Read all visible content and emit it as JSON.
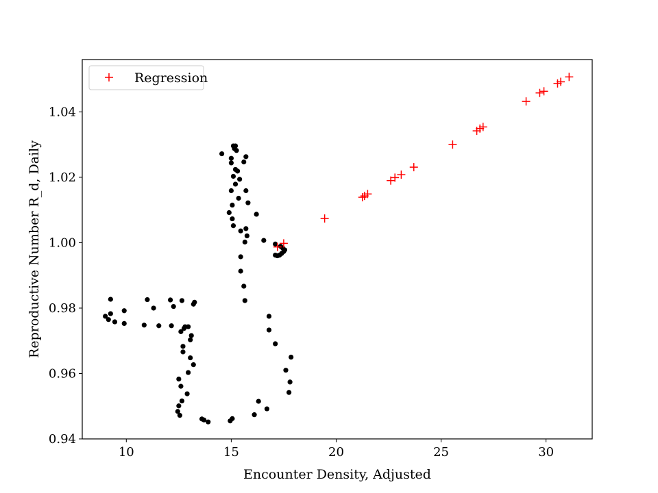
{
  "chart_data": {
    "type": "scatter",
    "title": "",
    "xlabel": "Encounter Density, Adjusted",
    "ylabel": "Reproductive Number R_d, Daily",
    "xlim": [
      7.9,
      32.2
    ],
    "ylim": [
      0.94,
      1.056
    ],
    "x_ticks": [
      10,
      15,
      20,
      25,
      30
    ],
    "x_tick_labels": [
      "10",
      "15",
      "20",
      "25",
      "30"
    ],
    "y_ticks": [
      0.94,
      0.96,
      0.98,
      1.0,
      1.02,
      1.04
    ],
    "y_tick_labels": [
      "0.94",
      "0.96",
      "0.98",
      "1.00",
      "1.02",
      "1.04"
    ],
    "grid": false,
    "legend": {
      "position": "top-left"
    },
    "series": [
      {
        "marker": "dot",
        "color": "#000000",
        "points": [
          [
            9.0,
            0.9775
          ],
          [
            9.15,
            0.9765
          ],
          [
            9.25,
            0.9827
          ],
          [
            9.25,
            0.9783
          ],
          [
            9.45,
            0.9758
          ],
          [
            9.9,
            0.9753
          ],
          [
            9.9,
            0.9792
          ],
          [
            10.85,
            0.9748
          ],
          [
            11.0,
            0.9826
          ],
          [
            11.3,
            0.98
          ],
          [
            11.55,
            0.9746
          ],
          [
            12.1,
            0.9825
          ],
          [
            12.15,
            0.9746
          ],
          [
            12.25,
            0.9805
          ],
          [
            12.65,
            0.9823
          ],
          [
            12.6,
            0.9728
          ],
          [
            12.75,
            0.9738
          ],
          [
            12.8,
            0.9743
          ],
          [
            12.95,
            0.9743
          ],
          [
            13.05,
            0.9703
          ],
          [
            13.1,
            0.9716
          ],
          [
            13.2,
            0.9812
          ],
          [
            13.25,
            0.9818
          ],
          [
            12.7,
            0.9683
          ],
          [
            12.7,
            0.9666
          ],
          [
            13.05,
            0.9648
          ],
          [
            13.2,
            0.9627
          ],
          [
            12.95,
            0.9603
          ],
          [
            12.5,
            0.9583
          ],
          [
            12.6,
            0.9561
          ],
          [
            12.9,
            0.9538
          ],
          [
            12.65,
            0.9516
          ],
          [
            12.5,
            0.9501
          ],
          [
            12.45,
            0.9484
          ],
          [
            12.55,
            0.9472
          ],
          [
            13.6,
            0.9461
          ],
          [
            13.7,
            0.9458
          ],
          [
            13.9,
            0.9452
          ],
          [
            14.95,
            0.9455
          ],
          [
            15.05,
            0.9462
          ],
          [
            16.1,
            0.9474
          ],
          [
            16.3,
            0.9515
          ],
          [
            16.7,
            0.9492
          ],
          [
            17.75,
            0.9542
          ],
          [
            17.8,
            0.9574
          ],
          [
            17.6,
            0.961
          ],
          [
            17.85,
            0.965
          ],
          [
            17.1,
            0.9691
          ],
          [
            16.8,
            0.9733
          ],
          [
            16.8,
            0.9775
          ],
          [
            15.65,
            0.9823
          ],
          [
            15.6,
            0.9867
          ],
          [
            15.45,
            0.9913
          ],
          [
            15.45,
            0.9957
          ],
          [
            15.65,
            1.0002
          ],
          [
            15.75,
            1.0021
          ],
          [
            15.7,
            1.0043
          ],
          [
            15.45,
            1.0036
          ],
          [
            15.1,
            1.0052
          ],
          [
            15.05,
            1.0073
          ],
          [
            14.9,
            1.0092
          ],
          [
            15.05,
            1.0115
          ],
          [
            15.35,
            1.0136
          ],
          [
            15.8,
            1.0122
          ],
          [
            16.2,
            1.0087
          ],
          [
            16.55,
            1.0007
          ],
          [
            15.0,
            1.0159
          ],
          [
            15.2,
            1.0179
          ],
          [
            15.1,
            1.0203
          ],
          [
            15.2,
            1.0224
          ],
          [
            15.3,
            1.0219
          ],
          [
            15.4,
            1.0194
          ],
          [
            15.7,
            1.0159
          ],
          [
            15.6,
            1.0247
          ],
          [
            15.7,
            1.0263
          ],
          [
            15.0,
            1.0244
          ],
          [
            15.0,
            1.0258
          ],
          [
            14.55,
            1.0272
          ],
          [
            15.1,
            1.0296
          ],
          [
            15.2,
            1.0296
          ],
          [
            15.15,
            1.0288
          ],
          [
            15.25,
            1.0282
          ],
          [
            17.1,
            0.9996
          ],
          [
            17.2,
            0.996
          ],
          [
            17.1,
            0.9962
          ],
          [
            17.3,
            0.9962
          ],
          [
            17.4,
            0.9967
          ],
          [
            17.5,
            0.9973
          ],
          [
            17.55,
            0.9978
          ],
          [
            17.45,
            0.9984
          ],
          [
            17.35,
            0.9989
          ]
        ]
      },
      {
        "name": "Regression",
        "marker": "plus",
        "color": "#ff0000",
        "points": [
          [
            17.2,
            0.9987
          ],
          [
            17.5,
            0.9998
          ],
          [
            19.45,
            1.0074
          ],
          [
            21.25,
            1.0139
          ],
          [
            21.35,
            1.0143
          ],
          [
            21.5,
            1.0149
          ],
          [
            22.6,
            1.019
          ],
          [
            22.8,
            1.0199
          ],
          [
            23.1,
            1.0208
          ],
          [
            23.7,
            1.0231
          ],
          [
            25.55,
            1.03
          ],
          [
            26.7,
            1.0342
          ],
          [
            26.85,
            1.0349
          ],
          [
            27.0,
            1.0354
          ],
          [
            29.05,
            1.0432
          ],
          [
            29.7,
            1.0458
          ],
          [
            29.9,
            1.0463
          ],
          [
            30.55,
            1.0487
          ],
          [
            30.7,
            1.0492
          ],
          [
            31.1,
            1.0507
          ]
        ]
      }
    ]
  }
}
